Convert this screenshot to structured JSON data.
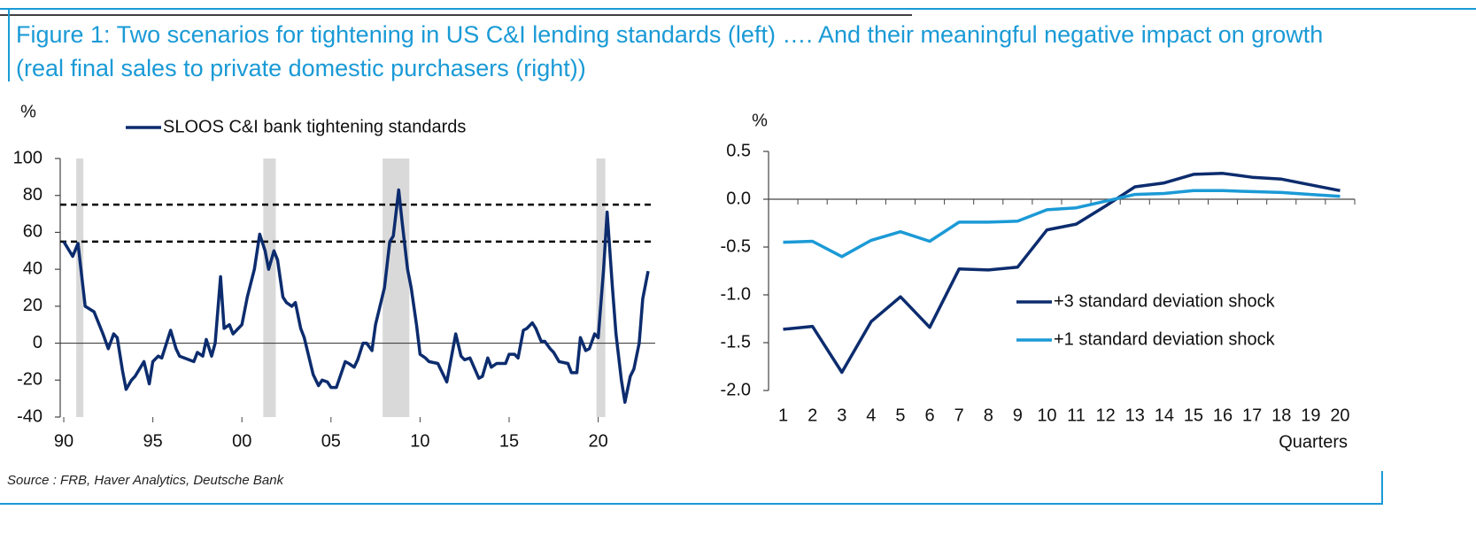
{
  "title": "Figure 1: Two scenarios for tightening in US C&I lending standards (left) …. And their meaningful negative impact on growth (real final sales to private domestic purchasers (right))",
  "source": "Source : FRB, Haver Analytics, Deutsche Bank",
  "chart_data": [
    {
      "type": "line",
      "y_label": "%",
      "x": [
        1990.0,
        1990.5,
        1990.8,
        1991.2,
        1991.7,
        1992.2,
        1992.5,
        1992.8,
        1993.0,
        1993.3,
        1993.5,
        1993.8,
        1994.0,
        1994.5,
        1994.8,
        1995.0,
        1995.3,
        1995.5,
        1996.0,
        1996.3,
        1996.5,
        1997.3,
        1997.5,
        1997.8,
        1998.0,
        1998.3,
        1998.5,
        1998.8,
        1999.0,
        1999.3,
        1999.5,
        2000.0,
        2000.3,
        2000.7,
        2001.0,
        2001.3,
        2001.5,
        2001.8,
        2002.0,
        2002.3,
        2002.5,
        2002.8,
        2003.0,
        2003.3,
        2003.5,
        2004.0,
        2004.3,
        2004.5,
        2004.8,
        2005.0,
        2005.3,
        2005.8,
        2006.0,
        2006.3,
        2006.5,
        2006.8,
        2007.0,
        2007.3,
        2007.5,
        2008.0,
        2008.3,
        2008.5,
        2008.8,
        2009.0,
        2009.3,
        2009.5,
        2009.8,
        2010.0,
        2010.3,
        2010.5,
        2011.0,
        2011.5,
        2012.0,
        2012.3,
        2012.5,
        2012.8,
        2013.3,
        2013.5,
        2013.8,
        2014.0,
        2014.3,
        2014.8,
        2015.0,
        2015.3,
        2015.5,
        2015.8,
        2016.0,
        2016.3,
        2016.5,
        2016.8,
        2017.0,
        2017.3,
        2017.5,
        2017.8,
        2018.3,
        2018.5,
        2018.8,
        2019.0,
        2019.3,
        2019.5,
        2019.8,
        2020.0,
        2020.3,
        2020.5,
        2020.8,
        2021.0,
        2021.3,
        2021.5,
        2021.8,
        2022.0,
        2022.3,
        2022.5,
        2022.8
      ],
      "series": [
        {
          "name": "SLOOS C&I bank tightening standards",
          "color": "#0c2c6e",
          "values": [
            55,
            47,
            54,
            20,
            17,
            5,
            -3,
            5,
            3,
            -15,
            -25,
            -20,
            -18,
            -10,
            -22,
            -10,
            -7,
            -8,
            7,
            -3,
            -7,
            -10,
            -5,
            -7,
            2,
            -7,
            0,
            36,
            8,
            10,
            5,
            10,
            25,
            40,
            59,
            50,
            40,
            50,
            45,
            25,
            22,
            20,
            22,
            8,
            3,
            -17,
            -23,
            -20,
            -21,
            -24,
            -24,
            -10,
            -11,
            -13,
            -9,
            0,
            0,
            -4,
            10,
            30,
            55,
            58,
            83,
            65,
            40,
            30,
            10,
            -6,
            -8,
            -10,
            -11,
            -21,
            5,
            -7,
            -9,
            -8,
            -19,
            -18,
            -8,
            -13,
            -11,
            -11,
            -6,
            -6,
            -8,
            7,
            8,
            11,
            8,
            1,
            1,
            -3,
            -5,
            -10,
            -11,
            -16,
            -16,
            3,
            -4,
            -3,
            5,
            3,
            40,
            71,
            30,
            5,
            -20,
            -32,
            -18,
            -14,
            0,
            24,
            39
          ]
        }
      ],
      "xlim": [
        1989.8,
        2023.2
      ],
      "xticks": [
        {
          "value": 1990,
          "label": "90"
        },
        {
          "value": 1995,
          "label": "95"
        },
        {
          "value": 2000,
          "label": "00"
        },
        {
          "value": 2005,
          "label": "05"
        },
        {
          "value": 2010,
          "label": "10"
        },
        {
          "value": 2015,
          "label": "15"
        },
        {
          "value": 2020,
          "label": "20"
        }
      ],
      "ylim": [
        -40,
        100
      ],
      "yticks": [
        -40,
        -20,
        0,
        20,
        40,
        60,
        80,
        100
      ],
      "reference_lines": [
        75,
        55
      ],
      "recessions": [
        [
          1990.7,
          1991.1
        ],
        [
          2001.2,
          2001.9
        ],
        [
          2007.9,
          2009.4
        ],
        [
          2019.9,
          2020.4
        ]
      ],
      "recession_color": "#d9d9d9"
    },
    {
      "type": "line",
      "y_label": "%",
      "x_label": "Quarters",
      "categories": [
        "1",
        "2",
        "3",
        "4",
        "5",
        "6",
        "7",
        "8",
        "9",
        "10",
        "11",
        "12",
        "13",
        "14",
        "15",
        "16",
        "17",
        "18",
        "19",
        "20"
      ],
      "series": [
        {
          "name": "+3 standard deviation shock",
          "color": "#0c2c6e",
          "values": [
            -1.36,
            -1.33,
            -1.81,
            -1.28,
            -1.02,
            -1.34,
            -0.73,
            -0.74,
            -0.71,
            -0.32,
            -0.26,
            -0.07,
            0.13,
            0.17,
            0.26,
            0.27,
            0.23,
            0.21,
            0.15,
            0.09
          ]
        },
        {
          "name": "+1 standard deviation shock",
          "color": "#1b9ad6",
          "values": [
            -0.45,
            -0.44,
            -0.6,
            -0.43,
            -0.34,
            -0.44,
            -0.24,
            -0.24,
            -0.23,
            -0.11,
            -0.09,
            -0.02,
            0.05,
            0.06,
            0.09,
            0.09,
            0.08,
            0.07,
            0.05,
            0.03
          ]
        }
      ],
      "ylim": [
        -2,
        0.5
      ],
      "yticks": [
        0.5,
        {
          "value": 0,
          "label": "0.0"
        },
        -0.5,
        {
          "value": -1,
          "label": "-1.0"
        },
        -1.5,
        {
          "value": -2,
          "label": "-2.0"
        }
      ]
    }
  ]
}
